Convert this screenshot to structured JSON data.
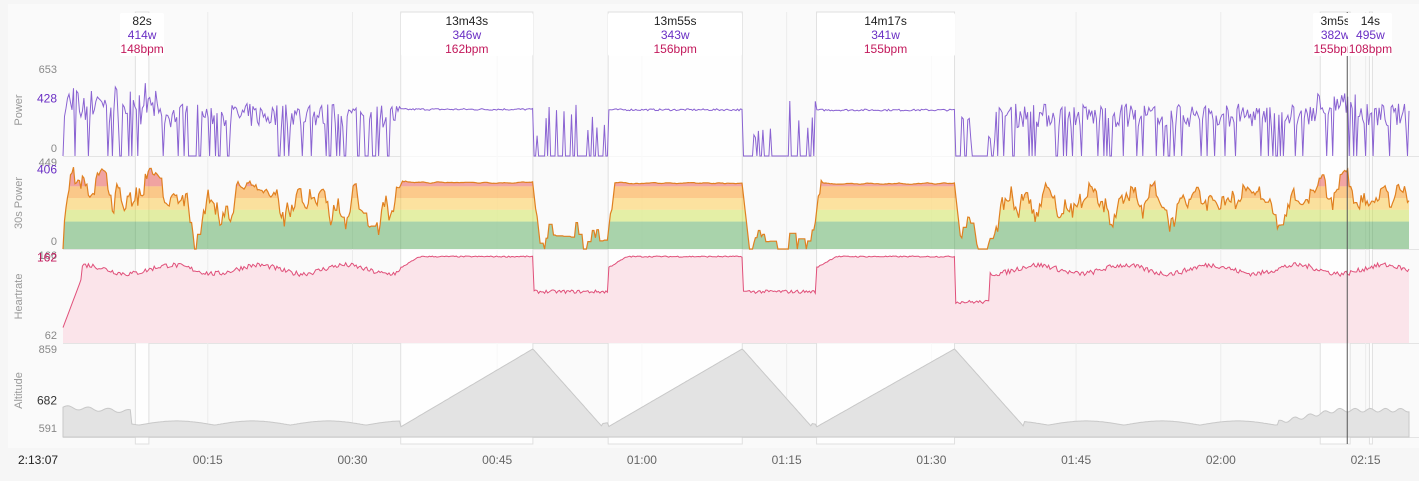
{
  "chart_data": {
    "type": "line",
    "time_axis": {
      "current_time": "2:13:07",
      "tick_labels": [
        "00:15",
        "00:30",
        "00:45",
        "01:00",
        "01:15",
        "01:30",
        "01:45",
        "02:00",
        "02:15"
      ],
      "tick_minutes": [
        15,
        30,
        45,
        60,
        75,
        90,
        105,
        120,
        135
      ],
      "range_minutes": [
        0,
        139.5
      ],
      "cursor_minutes": 133.1
    },
    "panels": [
      {
        "label": "Power",
        "unit": "w",
        "ticks": [
          "653",
          "428",
          "0"
        ],
        "tick_values": [
          653,
          428,
          0
        ],
        "ylim": [
          0,
          653
        ],
        "color": "#8a63d2",
        "fill": "none"
      },
      {
        "label": "30s Power",
        "unit": "w",
        "ticks": [
          "449",
          "406",
          "0"
        ],
        "tick_values": [
          449,
          406,
          0
        ],
        "ylim": [
          0,
          449
        ],
        "color": "#d81b60",
        "fill": "zones",
        "zone_colors": [
          "#43a047",
          "#c6dd3c",
          "#fbc02d",
          "#fb8c00",
          "#e53935",
          "#8e44ad"
        ]
      },
      {
        "label": "Heartrate",
        "unit": "bpm",
        "ticks": [
          "166",
          "162",
          "62"
        ],
        "tick_values": [
          166,
          162,
          62
        ],
        "ylim": [
          62,
          166
        ],
        "color": "#e0507a",
        "fill": "#fbe4ea"
      },
      {
        "label": "Altitude",
        "unit": "m",
        "ticks": [
          "859",
          "682",
          "591"
        ],
        "tick_values": [
          859,
          682,
          591
        ],
        "ylim": [
          560,
          859
        ],
        "color": "#c8c8c8",
        "fill": "#e3e3e3"
      }
    ],
    "selections": [
      {
        "duration": "82s",
        "power": "414w",
        "heartrate": "148bpm",
        "start_min": 7.5,
        "end_min": 8.9,
        "power_w": 414,
        "hr_bpm": 148
      },
      {
        "duration": "13m43s",
        "power": "346w",
        "heartrate": "162bpm",
        "start_min": 35.0,
        "end_min": 48.7,
        "power_w": 346,
        "hr_bpm": 162
      },
      {
        "duration": "13m55s",
        "power": "343w",
        "heartrate": "156bpm",
        "start_min": 56.5,
        "end_min": 70.4,
        "power_w": 343,
        "hr_bpm": 156
      },
      {
        "duration": "14m17s",
        "power": "341w",
        "heartrate": "155bpm",
        "start_min": 78.1,
        "end_min": 92.4,
        "power_w": 341,
        "hr_bpm": 155
      },
      {
        "duration": "3m5s",
        "power": "382w",
        "heartrate": "155bpm",
        "start_min": 130.3,
        "end_min": 133.4,
        "power_w": 382,
        "hr_bpm": 155
      },
      {
        "duration": "14s",
        "power": "495w",
        "heartrate": "108bpm",
        "start_min": 135.4,
        "end_min": 135.6,
        "power_w": 495,
        "hr_bpm": 108
      }
    ],
    "grid": true,
    "legend": "none"
  }
}
